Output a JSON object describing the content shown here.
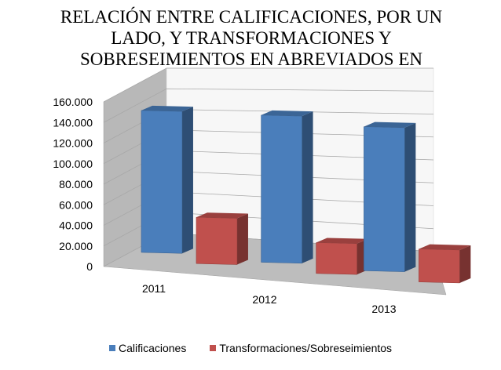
{
  "chart_data": {
    "type": "bar",
    "title": "RELACIÓN ENTRE CALIFICACIONES, POR UN LADO, Y TRANSFORMACIONES Y SOBRESEIMIENTOS EN ABREVIADOS EN INSTRUCCIÓN",
    "categories": [
      "2011",
      "2012",
      "2013"
    ],
    "series": [
      {
        "name": "Calificaciones",
        "values": [
          138000,
          143000,
          140000
        ],
        "color": "#4a7ebb"
      },
      {
        "name": "Transformaciones/Sobreseimientos",
        "values": [
          45000,
          30000,
          32000
        ],
        "color": "#c0504d"
      }
    ],
    "ylim": [
      0,
      160000
    ],
    "yticks": [
      0,
      20000,
      40000,
      60000,
      80000,
      100000,
      120000,
      140000,
      160000
    ],
    "ytick_labels": [
      "0",
      "20.000",
      "40.000",
      "60.000",
      "80.000",
      "100.000",
      "120.000",
      "140.000",
      "160.000"
    ],
    "grid": true,
    "legend_position": "bottom",
    "style": "3d-column"
  }
}
